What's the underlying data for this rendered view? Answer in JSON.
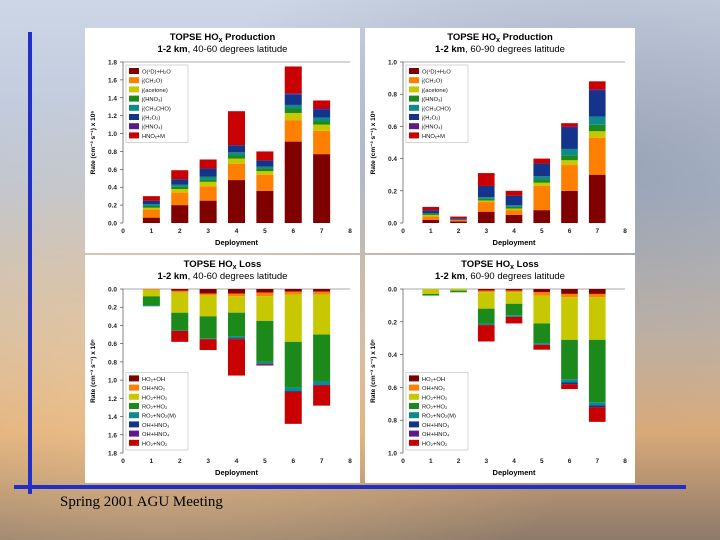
{
  "footer": "Spring 2001 AGU Meeting",
  "colors": {
    "O1D": "#800000",
    "CH2O": "#ff7f00",
    "acetone": "#c8c800",
    "HNO3_PAN": "#1b8a1b",
    "CH3CHO": "#0e8a8a",
    "H2O2": "#14348c",
    "HNO4": "#5a1a8c",
    "HNOx": "#c80000"
  },
  "chart_data": [
    {
      "id": "prod-40-60",
      "type": "bar",
      "stacked": true,
      "title": "TOPSE HO",
      "title_sub": "x",
      "title_tail": " Production",
      "subtitle_bold": "1-2 km",
      "subtitle_tail": ", 40-60 degrees latitude",
      "xlabel": "Deployment",
      "ylabel": "Rate (cm⁻³ s⁻¹) x 10⁶",
      "xlim": [
        0,
        8
      ],
      "ylim": [
        0,
        1.8
      ],
      "xticks": [
        "0",
        "1",
        "2",
        "3",
        "4",
        "5",
        "6",
        "7",
        "8"
      ],
      "yticks": [
        "0.0",
        "0.2",
        "0.4",
        "0.6",
        "0.8",
        "1.0",
        "1.2",
        "1.4",
        "1.6",
        "1.8"
      ],
      "legend": [
        "O(¹D)+H₂O",
        "j(CH₂O)",
        "j(acetone)",
        "j(HNO₃)",
        "j(CH₃CHO)",
        "j(H₂O₂)",
        "j(HNO₄)",
        "HNOₓ+M"
      ],
      "legend_position": "top-left",
      "x": [
        1,
        2,
        3,
        4,
        5,
        6,
        7
      ],
      "series": [
        {
          "key": "O1D",
          "values": [
            0.06,
            0.2,
            0.25,
            0.48,
            0.36,
            0.91,
            0.77
          ]
        },
        {
          "key": "CH2O",
          "values": [
            0.09,
            0.14,
            0.16,
            0.18,
            0.18,
            0.24,
            0.26
          ]
        },
        {
          "key": "acetone",
          "values": [
            0.02,
            0.04,
            0.05,
            0.06,
            0.04,
            0.08,
            0.07
          ]
        },
        {
          "key": "HNO3_PAN",
          "values": [
            0.02,
            0.03,
            0.03,
            0.04,
            0.03,
            0.05,
            0.04
          ]
        },
        {
          "key": "CH3CHO",
          "values": [
            0.02,
            0.02,
            0.03,
            0.03,
            0.02,
            0.04,
            0.04
          ]
        },
        {
          "key": "H2O2",
          "values": [
            0.04,
            0.06,
            0.09,
            0.08,
            0.07,
            0.12,
            0.09
          ]
        },
        {
          "key": "HNO4",
          "values": [
            0.0,
            0.0,
            0.0,
            0.0,
            0.0,
            0.01,
            0.01
          ]
        },
        {
          "key": "HNOx",
          "values": [
            0.05,
            0.1,
            0.1,
            0.38,
            0.1,
            0.3,
            0.09
          ]
        }
      ]
    },
    {
      "id": "prod-60-90",
      "type": "bar",
      "stacked": true,
      "title": "TOPSE HO",
      "title_sub": "x",
      "title_tail": " Production",
      "subtitle_bold": "1-2 km",
      "subtitle_tail": ", 60-90 degrees latitude",
      "xlabel": "Deployment",
      "ylabel": "Rate (cm⁻³ s⁻¹) x 10⁶",
      "xlim": [
        0,
        8
      ],
      "ylim": [
        0,
        1.0
      ],
      "xticks": [
        "0",
        "1",
        "2",
        "3",
        "4",
        "5",
        "6",
        "7",
        "8"
      ],
      "yticks": [
        "0.0",
        "0.2",
        "0.4",
        "0.6",
        "0.8",
        "1.0"
      ],
      "legend": [
        "O(¹D)+H₂O",
        "j(CH₂O)",
        "j(acetone)",
        "j(HNO₃)",
        "j(CH₃CHO)",
        "j(H₂O₂)",
        "j(HNO₄)",
        "HNOₓ+M"
      ],
      "legend_position": "top-left",
      "x": [
        1,
        2,
        3,
        4,
        5,
        6,
        7
      ],
      "series": [
        {
          "key": "O1D",
          "values": [
            0.02,
            0.01,
            0.07,
            0.05,
            0.08,
            0.2,
            0.3
          ]
        },
        {
          "key": "CH2O",
          "values": [
            0.02,
            0.01,
            0.06,
            0.03,
            0.15,
            0.16,
            0.23
          ]
        },
        {
          "key": "acetone",
          "values": [
            0.01,
            0.0,
            0.01,
            0.01,
            0.02,
            0.03,
            0.04
          ]
        },
        {
          "key": "HNO3_PAN",
          "values": [
            0.01,
            0.0,
            0.01,
            0.01,
            0.02,
            0.03,
            0.04
          ]
        },
        {
          "key": "CH3CHO",
          "values": [
            0.0,
            0.0,
            0.01,
            0.01,
            0.02,
            0.04,
            0.05
          ]
        },
        {
          "key": "H2O2",
          "values": [
            0.02,
            0.01,
            0.07,
            0.06,
            0.08,
            0.13,
            0.16
          ]
        },
        {
          "key": "HNO4",
          "values": [
            0.0,
            0.0,
            0.0,
            0.0,
            0.0,
            0.01,
            0.01
          ]
        },
        {
          "key": "HNOx",
          "values": [
            0.02,
            0.01,
            0.08,
            0.03,
            0.03,
            0.02,
            0.05
          ]
        }
      ]
    },
    {
      "id": "loss-40-60",
      "type": "bar",
      "stacked": true,
      "inverted": true,
      "title": "TOPSE HO",
      "title_sub": "x",
      "title_tail": " Loss",
      "subtitle_bold": "1-2 km",
      "subtitle_tail": ", 40-60 degrees latitude",
      "xlabel": "Deployment",
      "ylabel": "Rate (cm⁻³ s⁻¹) x 10⁶",
      "xlim": [
        0,
        8
      ],
      "ylim": [
        0,
        1.8
      ],
      "xticks": [
        "0",
        "1",
        "2",
        "3",
        "4",
        "5",
        "6",
        "7",
        "8"
      ],
      "yticks": [
        "0.0",
        "0.2",
        "0.4",
        "0.6",
        "0.8",
        "1.0",
        "1.2",
        "1.4",
        "1.6",
        "1.8"
      ],
      "legend": [
        "HO₂+OH",
        "OH+NO₂",
        "HO₂+HO₂",
        "RO₂+HO₂",
        "RO₂+NO₂(M)",
        "OH+HNO₃",
        "OH+HNO₄",
        "HO₂+NO₂"
      ],
      "legend_position": "bottom-left",
      "x": [
        1,
        2,
        3,
        4,
        5,
        6,
        7
      ],
      "series": [
        {
          "key": "O1D",
          "values": [
            0.0,
            0.02,
            0.05,
            0.05,
            0.04,
            0.03,
            0.03
          ]
        },
        {
          "key": "CH2O",
          "values": [
            0.01,
            0.02,
            0.02,
            0.03,
            0.04,
            0.03,
            0.03
          ]
        },
        {
          "key": "acetone",
          "values": [
            0.07,
            0.22,
            0.23,
            0.18,
            0.27,
            0.52,
            0.44
          ]
        },
        {
          "key": "HNO3_PAN",
          "values": [
            0.1,
            0.19,
            0.24,
            0.26,
            0.45,
            0.5,
            0.51
          ]
        },
        {
          "key": "CH3CHO",
          "values": [
            0.01,
            0.01,
            0.01,
            0.02,
            0.02,
            0.04,
            0.04
          ]
        },
        {
          "key": "H2O2",
          "values": [
            0.0,
            0.0,
            0.0,
            0.01,
            0.01,
            0.01,
            0.01
          ]
        },
        {
          "key": "HNO4",
          "values": [
            0.0,
            0.0,
            0.0,
            0.0,
            0.0,
            0.0,
            0.0
          ]
        },
        {
          "key": "HNOx",
          "values": [
            0.0,
            0.12,
            0.12,
            0.4,
            0.01,
            0.35,
            0.22
          ]
        }
      ]
    },
    {
      "id": "loss-60-90",
      "type": "bar",
      "stacked": true,
      "inverted": true,
      "title": "TOPSE HO",
      "title_sub": "x",
      "title_tail": " Loss",
      "subtitle_bold": "1-2 km",
      "subtitle_tail": ", 60-90 degrees latitude",
      "xlabel": "Deployment",
      "ylabel": "Rate (cm⁻³ s⁻¹) x 10⁶",
      "xlim": [
        0,
        8
      ],
      "ylim": [
        0,
        1.0
      ],
      "xticks": [
        "0",
        "1",
        "2",
        "3",
        "4",
        "5",
        "6",
        "7",
        "8"
      ],
      "yticks": [
        "0.0",
        "0.2",
        "0.4",
        "0.6",
        "0.8",
        "1.0"
      ],
      "legend": [
        "HO₂+OH",
        "OH+NO₂",
        "HO₂+HO₂",
        "RO₂+HO₂",
        "RO₂+NO₂(M)",
        "OH+HNO₃",
        "OH+HNO₄",
        "HO₂+NO₂"
      ],
      "legend_position": "bottom-left",
      "x": [
        1,
        2,
        3,
        4,
        5,
        6,
        7
      ],
      "series": [
        {
          "key": "O1D",
          "values": [
            0.0,
            0.0,
            0.01,
            0.01,
            0.02,
            0.03,
            0.03
          ]
        },
        {
          "key": "CH2O",
          "values": [
            0.0,
            0.0,
            0.01,
            0.01,
            0.02,
            0.02,
            0.02
          ]
        },
        {
          "key": "acetone",
          "values": [
            0.03,
            0.01,
            0.1,
            0.07,
            0.17,
            0.26,
            0.26
          ]
        },
        {
          "key": "HNO3_PAN",
          "values": [
            0.01,
            0.01,
            0.09,
            0.07,
            0.12,
            0.24,
            0.38
          ]
        },
        {
          "key": "CH3CHO",
          "values": [
            0.0,
            0.0,
            0.01,
            0.01,
            0.01,
            0.02,
            0.02
          ]
        },
        {
          "key": "H2O2",
          "values": [
            0.0,
            0.0,
            0.0,
            0.0,
            0.0,
            0.01,
            0.01
          ]
        },
        {
          "key": "HNO4",
          "values": [
            0.0,
            0.0,
            0.0,
            0.0,
            0.0,
            0.0,
            0.0
          ]
        },
        {
          "key": "HNOx",
          "values": [
            0.0,
            0.0,
            0.1,
            0.04,
            0.03,
            0.03,
            0.09
          ]
        }
      ]
    }
  ]
}
